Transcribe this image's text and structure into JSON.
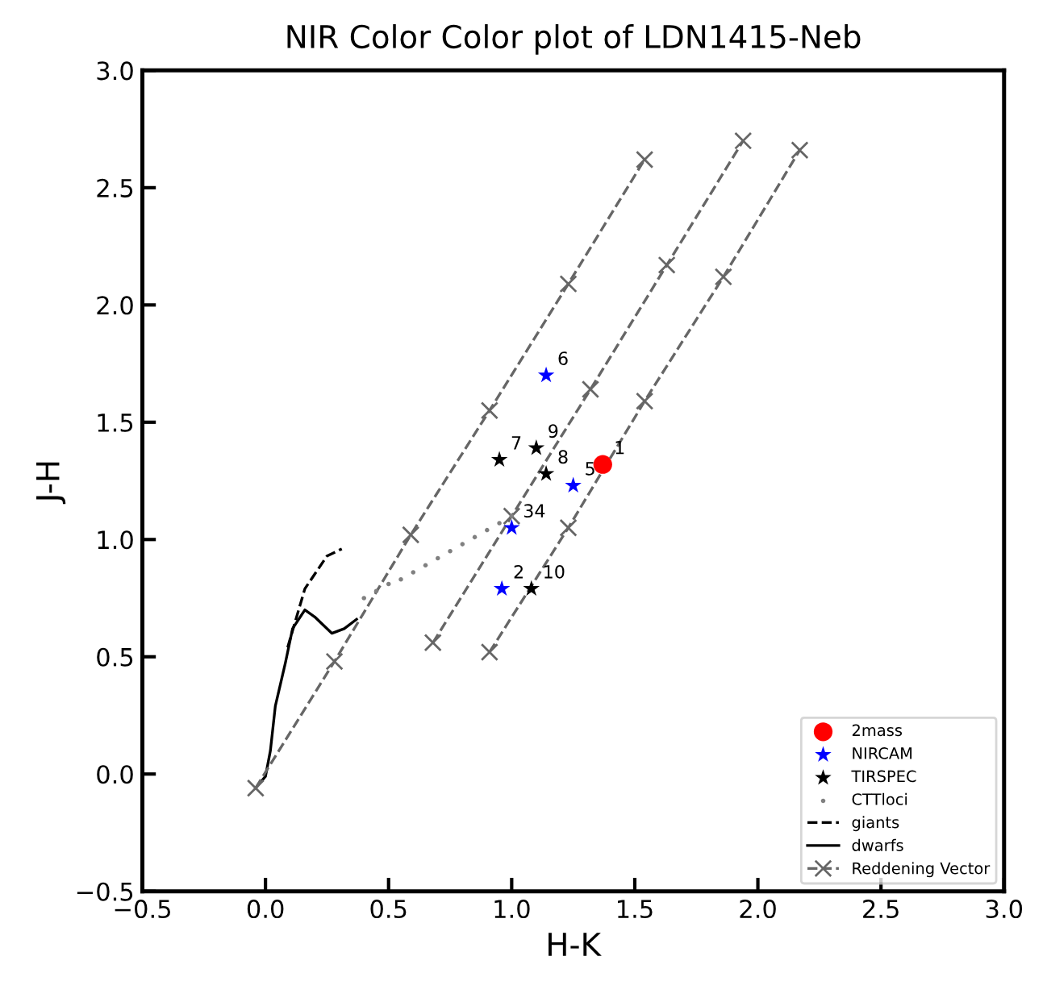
{
  "chart_data": {
    "type": "scatter",
    "title": "NIR Color Color plot of LDN1415-Neb",
    "xlabel": "H-K",
    "ylabel": "J-H",
    "xlim": [
      -0.5,
      3.0
    ],
    "ylim": [
      -0.5,
      3.0
    ],
    "xticks": [
      {
        "value": -0.5,
        "label": "−0.5"
      },
      {
        "value": 0,
        "label": "0.0"
      },
      0.5,
      {
        "value": 1,
        "label": "1.0"
      },
      1.5,
      {
        "value": 2,
        "label": "2.0"
      },
      2.5,
      {
        "value": 3,
        "label": "3.0"
      }
    ],
    "yticks": [
      {
        "value": -0.5,
        "label": "−0.5"
      },
      {
        "value": 0,
        "label": "0.0"
      },
      0.5,
      {
        "value": 1,
        "label": "1.0"
      },
      1.5,
      {
        "value": 2,
        "label": "2.0"
      },
      2.5,
      {
        "value": 3,
        "label": "3.0"
      }
    ],
    "grid": false,
    "legend": "bottom right",
    "series": [
      {
        "name": "2mass",
        "marker": "circle",
        "color": "#ff0000",
        "x": [
          1.37
        ],
        "values": [
          1.32
        ]
      },
      {
        "name": "NIRCAM",
        "marker": "star",
        "color": "#0000ff",
        "x": [
          1.14,
          1.25,
          1.0,
          0.96
        ],
        "values": [
          1.7,
          1.23,
          1.05,
          0.79
        ]
      },
      {
        "name": "TIRSPEC",
        "marker": "star",
        "color": "#000000",
        "x": [
          0.95,
          1.1,
          1.14,
          1.08
        ],
        "values": [
          1.34,
          1.39,
          1.28,
          0.79
        ]
      },
      {
        "name": "CTTloci",
        "marker": "circle",
        "color": "#808080",
        "x": [
          0.4,
          0.45,
          0.5,
          0.55,
          0.6,
          0.65,
          0.7,
          0.75,
          0.8,
          0.85,
          0.9,
          0.95,
          1.0
        ],
        "values": [
          0.75,
          0.78,
          0.81,
          0.83,
          0.86,
          0.89,
          0.92,
          0.95,
          0.98,
          1.01,
          1.04,
          1.07,
          1.1
        ]
      },
      {
        "name": "giants",
        "type": "line",
        "marker": "none",
        "line_style": "dashed",
        "color": "#000000",
        "x": [
          0.09,
          0.16,
          0.25,
          0.31
        ],
        "values": [
          0.54,
          0.79,
          0.93,
          0.96
        ]
      },
      {
        "name": "dwarfs",
        "type": "line",
        "marker": "none",
        "line_style": "solid",
        "color": "#000000",
        "x": [
          -0.04,
          0.0,
          0.02,
          0.04,
          0.08,
          0.11,
          0.16,
          0.2,
          0.27,
          0.32,
          0.37
        ],
        "values": [
          -0.06,
          -0.01,
          0.1,
          0.29,
          0.47,
          0.62,
          0.7,
          0.67,
          0.6,
          0.62,
          0.66
        ]
      },
      {
        "name": "Reddening Vector",
        "type": "line",
        "marker": "cross",
        "line_style": "dashed",
        "color": "#666666",
        "x": [
          -0.04,
          0.28,
          0.59,
          0.91,
          1.23,
          1.54
        ],
        "values": [
          -0.06,
          0.48,
          1.02,
          1.55,
          2.09,
          2.62
        ]
      },
      {
        "type": "line",
        "marker": "cross",
        "line_style": "dashed",
        "color": "#666666",
        "x": [
          0.68,
          1.0,
          1.32,
          1.63,
          1.94
        ],
        "values": [
          0.56,
          1.1,
          1.64,
          2.17,
          2.7
        ]
      },
      {
        "type": "line",
        "marker": "cross",
        "line_style": "dashed",
        "color": "#666666",
        "x": [
          0.91,
          1.23,
          1.54,
          1.86,
          2.17
        ],
        "values": [
          0.52,
          1.05,
          1.59,
          2.12,
          2.66
        ]
      }
    ],
    "annotations": [
      {
        "text": "1",
        "x": 1.37,
        "y": 1.32
      },
      {
        "text": "6",
        "x": 1.14,
        "y": 1.7
      },
      {
        "text": "5",
        "x": 1.25,
        "y": 1.23
      },
      {
        "text": "34",
        "x": 1.0,
        "y": 1.05
      },
      {
        "text": "2",
        "x": 0.96,
        "y": 0.79
      },
      {
        "text": "7",
        "x": 0.95,
        "y": 1.34
      },
      {
        "text": "9",
        "x": 1.1,
        "y": 1.39
      },
      {
        "text": "8",
        "x": 1.14,
        "y": 1.28
      },
      {
        "text": "10",
        "x": 1.08,
        "y": 0.79
      }
    ]
  }
}
